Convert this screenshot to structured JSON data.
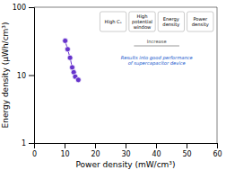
{
  "chart_data": {
    "type": "line",
    "x": [
      10.2,
      11.0,
      11.8,
      12.5,
      13.0,
      13.5,
      14.5
    ],
    "series": [
      {
        "values": [
          32,
          24,
          18,
          13,
          11,
          9.5,
          8.5
        ],
        "color": "#6633cc",
        "marker": "circle",
        "line_style": "solid"
      }
    ],
    "x_label": "Power density (mW/cm³)",
    "y_label": "Energy density (μWh/cm³)",
    "xlim": [
      0,
      60
    ],
    "xticks": [
      0,
      10,
      20,
      30,
      40,
      50,
      60
    ],
    "ylim": [
      1,
      100
    ],
    "yticks": [
      1,
      10,
      100
    ],
    "log": "y",
    "annotations": [
      "High Cₛ",
      "High\npotential\nwindow",
      "Energy\ndensity",
      "Power\ndensity",
      "Increase",
      "Results into good performance\nof supercapacitor device"
    ]
  }
}
